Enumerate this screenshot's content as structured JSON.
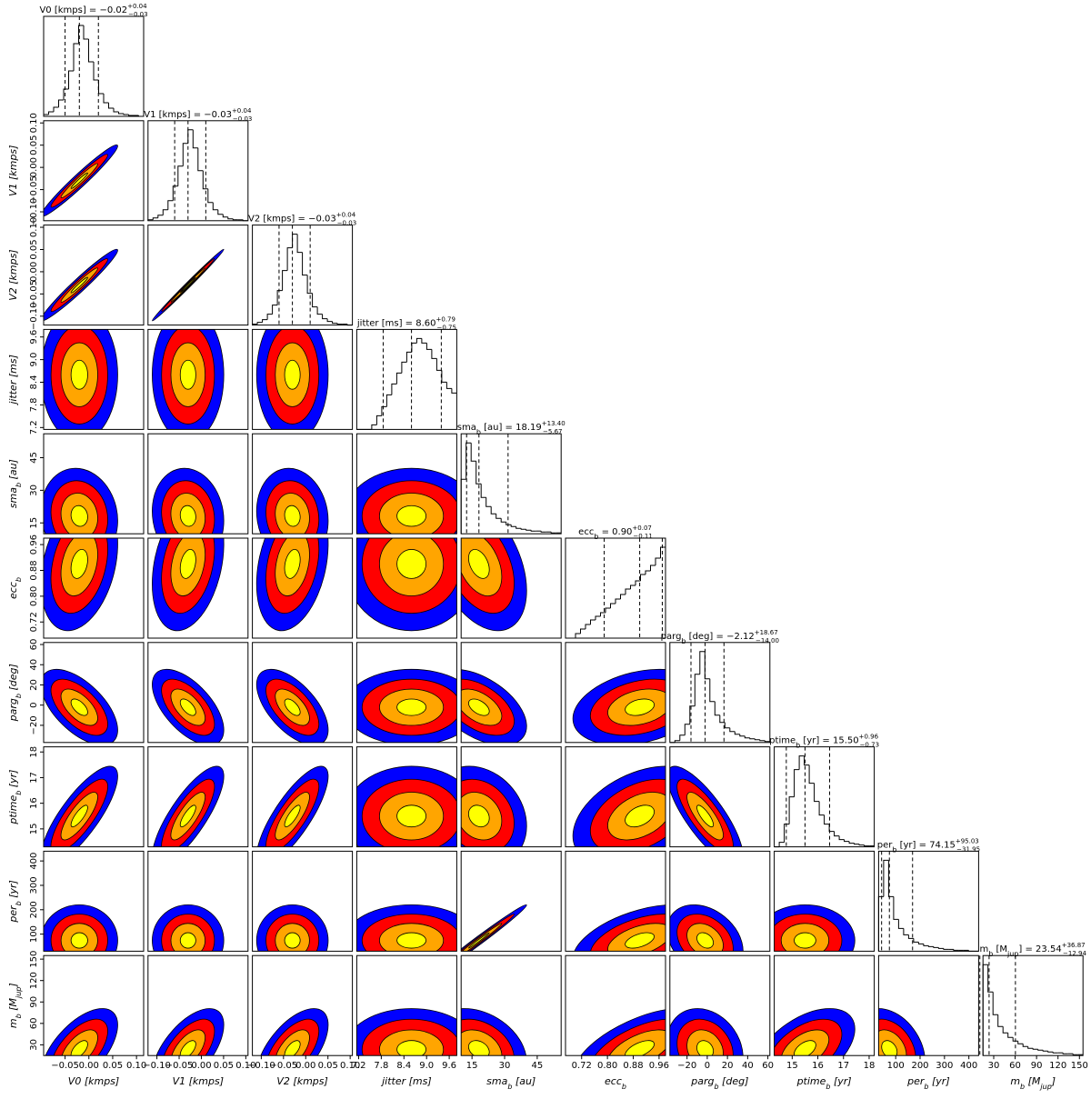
{
  "chart_data": {
    "type": "corner",
    "title_separator": " = ",
    "contour_colors": [
      "#0000ff",
      "#ff0000",
      "#ffa500",
      "#ffff00"
    ],
    "parameters": [
      {
        "label": [
          {
            "text": "V0 [kmps]"
          }
        ],
        "lim": [
          -0.095,
          0.115
        ],
        "ticks": [
          {
            "value": -0.05,
            "label": "−0.05"
          },
          {
            "value": 0,
            "label": "0.00"
          },
          {
            "value": 0.05,
            "label": "0.05"
          },
          {
            "value": 0.1,
            "label": "0.10"
          }
        ],
        "median_label": "−0.02",
        "plus_label": "+0.04",
        "minus_label": "−0.03",
        "quantiles": [
          -0.05,
          -0.02,
          0.02
        ],
        "hist_counts": [
          2,
          5,
          10,
          18,
          30,
          50,
          80,
          100,
          85,
          60,
          40,
          25,
          15,
          9,
          5,
          3,
          2,
          1,
          1,
          0
        ]
      },
      {
        "label": [
          {
            "text": "V1 [kmps]"
          }
        ],
        "lim": [
          -0.12,
          0.105
        ],
        "ticks": [
          {
            "value": -0.1,
            "label": "−0.10"
          },
          {
            "value": -0.05,
            "label": "−0.05"
          },
          {
            "value": 0,
            "label": "0.00"
          },
          {
            "value": 0.05,
            "label": "0.05"
          },
          {
            "value": 0.1,
            "label": "0.10"
          }
        ],
        "median_label": "−0.03",
        "plus_label": "+0.04",
        "minus_label": "−0.03",
        "quantiles": [
          -0.06,
          -0.03,
          0.01
        ],
        "hist_counts": [
          1,
          3,
          6,
          12,
          22,
          38,
          60,
          85,
          100,
          80,
          55,
          35,
          20,
          12,
          7,
          4,
          2,
          1,
          1,
          0
        ]
      },
      {
        "label": [
          {
            "text": "V2 [kmps]"
          }
        ],
        "lim": [
          -0.12,
          0.105
        ],
        "ticks": [
          {
            "value": -0.1,
            "label": "−0.10"
          },
          {
            "value": -0.05,
            "label": "−0.05"
          },
          {
            "value": 0,
            "label": "0.00"
          },
          {
            "value": 0.05,
            "label": "0.05"
          },
          {
            "value": 0.1,
            "label": "0.10"
          }
        ],
        "median_label": "−0.03",
        "plus_label": "+0.04",
        "minus_label": "−0.03",
        "quantiles": [
          -0.06,
          -0.03,
          0.01
        ],
        "hist_counts": [
          1,
          3,
          6,
          12,
          22,
          38,
          60,
          85,
          100,
          80,
          55,
          35,
          20,
          12,
          7,
          4,
          2,
          1,
          1,
          0
        ]
      },
      {
        "label": [
          {
            "text": "jitter [ms]"
          }
        ],
        "lim": [
          7.15,
          9.8
        ],
        "ticks": [
          7.2,
          7.8,
          8.4,
          {
            "value": 9,
            "label": "9.0"
          },
          9.6
        ],
        "median_label": "8.60",
        "plus_label": "+0.79",
        "minus_label": "−0.75",
        "quantiles": [
          7.85,
          8.6,
          9.39
        ],
        "hist_counts": [
          0,
          0,
          0,
          5,
          15,
          25,
          38,
          50,
          62,
          74,
          85,
          95,
          100,
          95,
          88,
          78,
          65,
          52,
          45,
          40
        ]
      },
      {
        "label": [
          {
            "text": "sma"
          },
          {
            "text": "b",
            "sub": true
          },
          {
            "text": " [au]"
          }
        ],
        "lim": [
          10,
          56
        ],
        "ticks": [
          15,
          30,
          45
        ],
        "median_label": "18.19",
        "plus_label": "+13.40",
        "minus_label": "−5.67",
        "quantiles": [
          12.52,
          18.19,
          31.59
        ],
        "hist_counts": [
          60,
          100,
          80,
          55,
          40,
          30,
          22,
          17,
          13,
          10,
          8,
          6,
          5,
          4,
          3,
          3,
          2,
          2,
          1,
          1
        ]
      },
      {
        "label": [
          {
            "text": "ecc"
          },
          {
            "text": "b",
            "sub": true
          }
        ],
        "lim": [
          0.67,
          0.98
        ],
        "ticks": [
          0.72,
          {
            "value": 0.8,
            "label": "0.80"
          },
          0.88,
          0.96
        ],
        "median_label": "0.90",
        "plus_label": "+0.07",
        "minus_label": "−0.11",
        "quantiles": [
          0.79,
          0.9,
          0.97
        ],
        "hist_counts": [
          0,
          0,
          5,
          10,
          15,
          20,
          24,
          28,
          33,
          38,
          43,
          48,
          54,
          58,
          63,
          70,
          74,
          80,
          88,
          100
        ]
      },
      {
        "label": [
          {
            "text": "parg"
          },
          {
            "text": "b",
            "sub": true
          },
          {
            "text": " [deg]"
          }
        ],
        "lim": [
          -37,
          62
        ],
        "ticks": [
          {
            "value": -20,
            "label": "−20"
          },
          0,
          20,
          40,
          60
        ],
        "median_label": "−2.12",
        "plus_label": "+18.67",
        "minus_label": "−14.00",
        "quantiles": [
          -16.12,
          -2.12,
          16.55
        ],
        "hist_counts": [
          0,
          2,
          8,
          20,
          40,
          75,
          100,
          70,
          45,
          30,
          22,
          16,
          12,
          9,
          7,
          5,
          4,
          3,
          2,
          1
        ]
      },
      {
        "label": [
          {
            "text": "ptime"
          },
          {
            "text": "b",
            "sub": true
          },
          {
            "text": " [yr]"
          }
        ],
        "lim": [
          14.3,
          18.2
        ],
        "ticks": [
          15,
          16,
          17,
          18
        ],
        "median_label": "15.50",
        "plus_label": "+0.96",
        "minus_label": "−0.73",
        "quantiles": [
          14.77,
          15.5,
          16.46
        ],
        "hist_counts": [
          0,
          5,
          25,
          55,
          85,
          100,
          90,
          70,
          50,
          35,
          25,
          17,
          12,
          8,
          6,
          4,
          3,
          2,
          1,
          1
        ]
      },
      {
        "label": [
          {
            "text": "per"
          },
          {
            "text": "b",
            "sub": true
          },
          {
            "text": " [yr]"
          }
        ],
        "lim": [
          30,
          440
        ],
        "ticks": [
          100,
          200,
          300,
          400
        ],
        "median_label": "74.15",
        "plus_label": "+95.03",
        "minus_label": "−31.95",
        "quantiles": [
          42.2,
          74.15,
          169.18
        ],
        "hist_counts": [
          60,
          100,
          60,
          35,
          25,
          18,
          14,
          10,
          8,
          6,
          5,
          4,
          3,
          2,
          2,
          1,
          1,
          1,
          0,
          0
        ]
      },
      {
        "label": [
          {
            "text": "m"
          },
          {
            "text": "b",
            "sub": true
          },
          {
            "text": " [M"
          },
          {
            "text": "jup",
            "sub": true
          },
          {
            "text": "]"
          }
        ],
        "lim": [
          15,
          155
        ],
        "ticks": [
          30,
          60,
          90,
          120,
          150
        ],
        "median_label": "23.54",
        "plus_label": "+36.87",
        "minus_label": "−12.94",
        "quantiles": [
          10.6,
          23.54,
          60.41
        ],
        "hist_counts": [
          100,
          70,
          45,
          32,
          25,
          20,
          16,
          13,
          10,
          8,
          7,
          6,
          5,
          4,
          3,
          3,
          2,
          2,
          1,
          1
        ]
      }
    ],
    "correlation": [
      [],
      [
        0.97
      ],
      [
        0.97,
        0.995
      ],
      [
        0,
        0,
        0
      ],
      [
        -0.1,
        -0.1,
        -0.1,
        0
      ],
      [
        0.3,
        0.3,
        0.3,
        0,
        -0.4
      ],
      [
        -0.6,
        -0.6,
        -0.6,
        0,
        -0.5,
        0.3
      ],
      [
        0.8,
        0.8,
        0.8,
        0,
        -0.2,
        0.4,
        -0.8
      ],
      [
        0,
        0,
        0,
        0,
        0.99,
        0.5,
        -0.3,
        0
      ],
      [
        0.6,
        0.6,
        0.6,
        0,
        -0.3,
        0.6,
        -0.2,
        0.5,
        -0.3
      ]
    ]
  }
}
